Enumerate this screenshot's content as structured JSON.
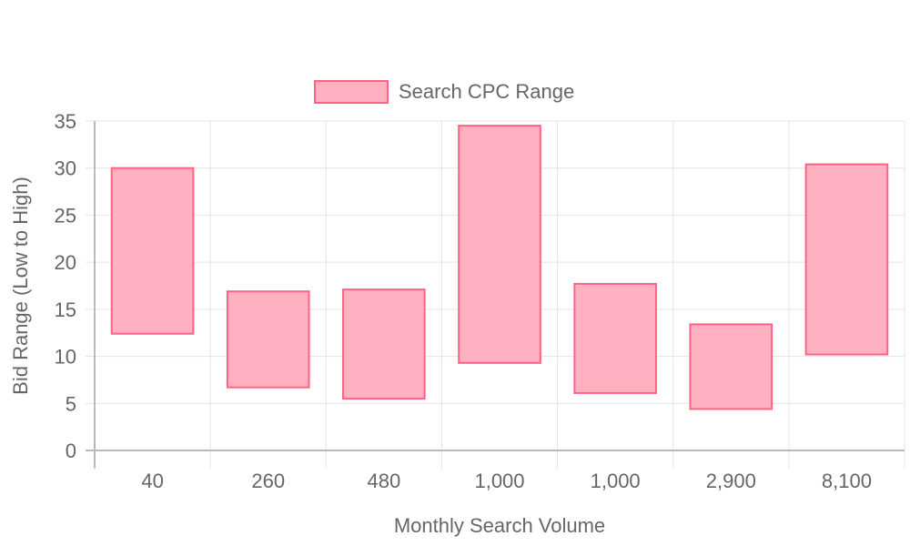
{
  "chart_data": {
    "type": "bar",
    "subtype": "floating-range",
    "categories": [
      "40",
      "260",
      "480",
      "1,000",
      "1,000",
      "2,900",
      "8,100"
    ],
    "series": [
      {
        "name": "Search CPC Range",
        "ranges": [
          [
            12.4,
            30.0
          ],
          [
            6.7,
            16.9
          ],
          [
            5.5,
            17.1
          ],
          [
            9.3,
            34.5
          ],
          [
            6.1,
            17.7
          ],
          [
            4.4,
            13.4
          ],
          [
            10.2,
            30.4
          ]
        ],
        "fill": "#ffb1c1",
        "stroke": "#ff6384"
      }
    ],
    "xlabel": "Monthly Search Volume",
    "ylabel": "Bid Range (Low to High)",
    "ylim": [
      0,
      35
    ],
    "yticks": [
      0,
      5,
      10,
      15,
      20,
      25,
      30,
      35
    ],
    "grid": true,
    "legend_position": "top-center"
  }
}
